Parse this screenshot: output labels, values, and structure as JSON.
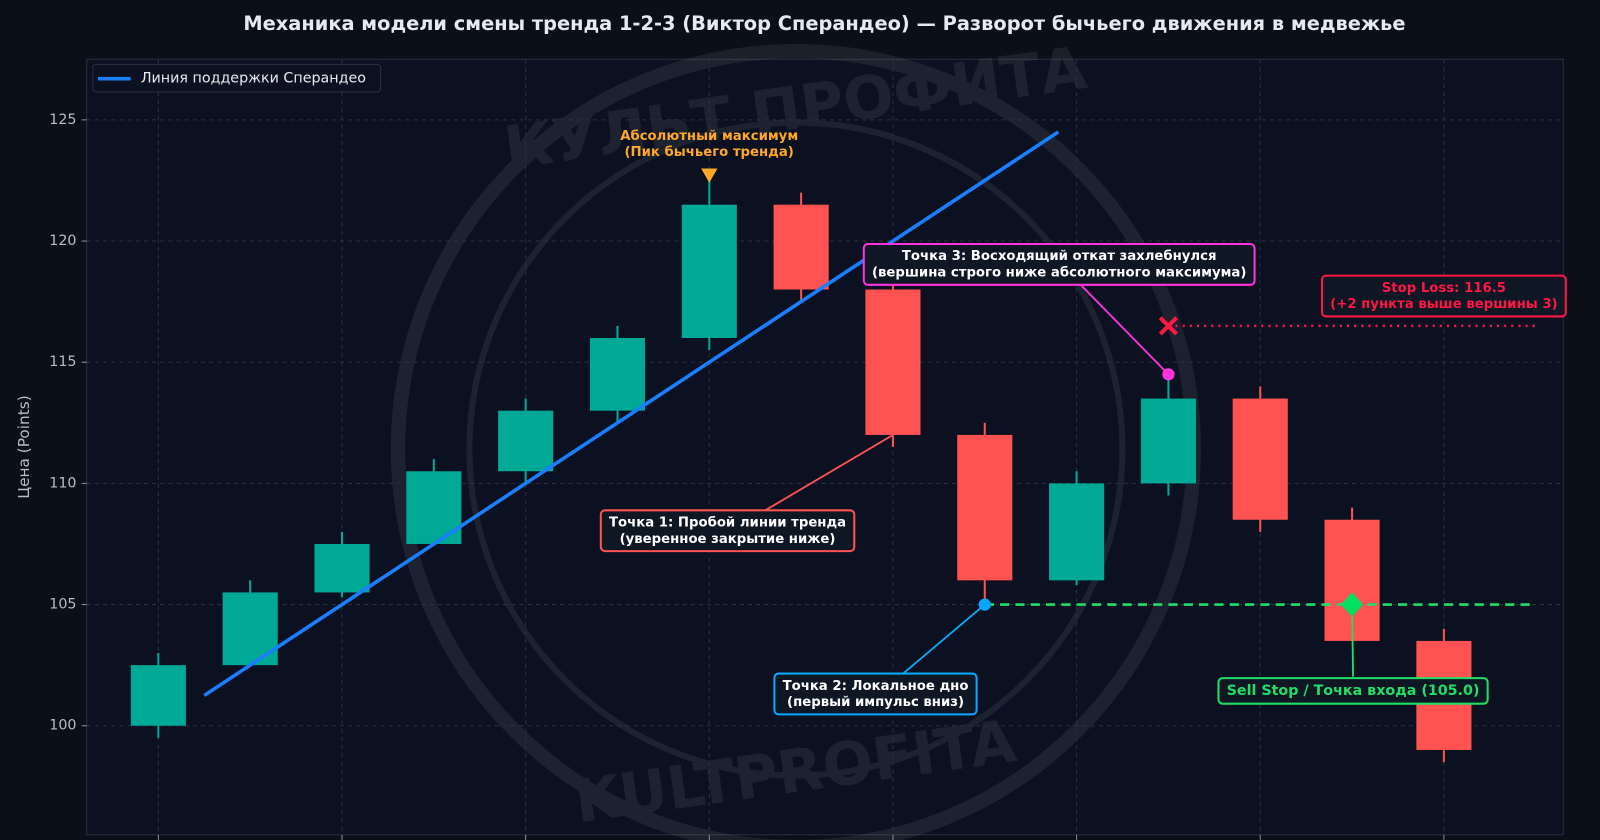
{
  "chart_data": {
    "type": "candlestick",
    "title": "Механика модели смены тренда 1-2-3 (Виктор Сперандео) — Разворот бычьего движения в медвежье",
    "y_label": "Цена (Points)",
    "watermark": [
      "КУЛЬТ ПРОФИТА",
      "KULTPROFITA"
    ],
    "xlim": [
      -0.78,
      15.3
    ],
    "ylim": [
      95.5,
      127.5
    ],
    "xticks": [
      0,
      2,
      4,
      6,
      8,
      10,
      12,
      14
    ],
    "yticks": [
      100,
      105,
      110,
      115,
      120,
      125
    ],
    "grid": true,
    "legend_position": "upper left",
    "up_color": "#00a896",
    "down_color": "#ff5252",
    "x": [
      0,
      1,
      2,
      3,
      4,
      5,
      6,
      7,
      8,
      9,
      10,
      11,
      12,
      13,
      14
    ],
    "candles": {
      "open": [
        100,
        102.5,
        105.5,
        107.5,
        110.5,
        113,
        116,
        121.5,
        118,
        112,
        106,
        110,
        113.5,
        108.5,
        103.5
      ],
      "high": [
        103,
        106,
        108,
        111,
        113.5,
        116.5,
        122.5,
        122,
        118.5,
        112.5,
        110.5,
        114.5,
        114,
        109,
        104
      ],
      "low": [
        99.5,
        102.5,
        105.3,
        107.5,
        110,
        112.5,
        115.5,
        117.5,
        111.5,
        105,
        105.8,
        109.5,
        108,
        103.5,
        98.5
      ],
      "close": [
        102.5,
        105.5,
        107.5,
        110.5,
        113,
        116,
        121.5,
        118,
        112,
        106,
        110,
        113.5,
        108.5,
        103.5,
        99
      ]
    },
    "series": [
      {
        "name": "Линия поддержки Сперандео",
        "color": "#1a7fff",
        "x": [
          0.5,
          9.8
        ],
        "values": [
          101.25,
          124.5
        ]
      }
    ],
    "levels": [
      {
        "value": 105,
        "x": [
          9,
          15
        ],
        "color": "#22dd66",
        "style": "dashed"
      },
      {
        "value": 116.5,
        "x": [
          11,
          15
        ],
        "color": "#ff1744",
        "style": "dotted"
      }
    ],
    "markers": [
      {
        "shape": "triangle",
        "x": 6,
        "y": 122.7,
        "color": "#ffa726"
      },
      {
        "shape": "circle",
        "x": 9,
        "y": 105,
        "color": "#0aa6ff"
      },
      {
        "shape": "circle",
        "x": 11,
        "y": 114.5,
        "color": "#ff33dd"
      },
      {
        "shape": "cross",
        "x": 11,
        "y": 116.5,
        "color": "#ff1744"
      },
      {
        "shape": "diamond",
        "x": 13,
        "y": 105,
        "color": "#00e060"
      }
    ],
    "annotations": [
      {
        "lines": [
          "Абсолютный максимум",
          "(Пик бычьего тренда)"
        ],
        "color": "#ffa726"
      },
      {
        "lines": [
          "Точка 1: Пробой линии тренда",
          "(уверенное закрытие ниже)"
        ],
        "color": "#ff5252"
      },
      {
        "lines": [
          "Точка 2: Локальное дно",
          "(первый импульс вниз)"
        ],
        "color": "#0aa6ff"
      },
      {
        "lines": [
          "Точка 3: Восходящий откат захлебнулся",
          "(вершина строго ниже абсолютного максимума)"
        ],
        "color": "#ff33dd"
      },
      {
        "lines": [
          "Stop Loss: 116.5",
          "(+2 пункта выше вершины 3)"
        ],
        "color": "#ff1744"
      },
      {
        "lines": [
          "Sell Stop / Точка входа (105.0)"
        ],
        "color": "#22dd66"
      }
    ]
  }
}
